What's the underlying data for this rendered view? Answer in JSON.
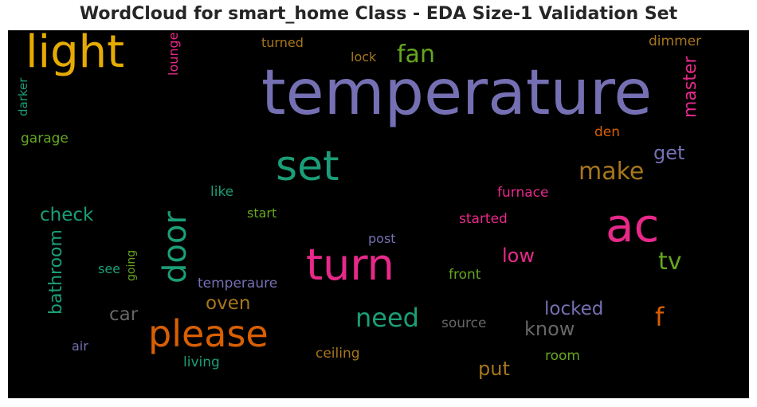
{
  "title": "WordCloud for smart_home Class - EDA Size-1 Validation Set",
  "chart_data": {
    "type": "wordcloud",
    "title": "WordCloud for smart_home Class - EDA Size-1 Validation Set",
    "background": "#000000",
    "words": [
      {
        "text": "temperature",
        "color": "#7570b3",
        "vertical": false
      },
      {
        "text": "light",
        "color": "#e6ab02",
        "vertical": false
      },
      {
        "text": "turn",
        "color": "#e7298a",
        "vertical": false
      },
      {
        "text": "please",
        "color": "#d95f02",
        "vertical": false
      },
      {
        "text": "ac",
        "color": "#e7298a",
        "vertical": false
      },
      {
        "text": "set",
        "color": "#1b9e77",
        "vertical": false
      },
      {
        "text": "door",
        "color": "#1b9e77",
        "vertical": true
      },
      {
        "text": "make",
        "color": "#a6761d",
        "vertical": false
      },
      {
        "text": "need",
        "color": "#1b9e77",
        "vertical": false
      },
      {
        "text": "fan",
        "color": "#66a61e",
        "vertical": false
      },
      {
        "text": "tv",
        "color": "#66a61e",
        "vertical": false
      },
      {
        "text": "master",
        "color": "#e7298a",
        "vertical": true
      },
      {
        "text": "check",
        "color": "#1b9e77",
        "vertical": false
      },
      {
        "text": "bathroom",
        "color": "#1b9e77",
        "vertical": true
      },
      {
        "text": "get",
        "color": "#7570b3",
        "vertical": false
      },
      {
        "text": "locked",
        "color": "#7570b3",
        "vertical": false
      },
      {
        "text": "know",
        "color": "#666666",
        "vertical": false
      },
      {
        "text": "f",
        "color": "#d95f02",
        "vertical": false
      },
      {
        "text": "low",
        "color": "#e7298a",
        "vertical": false
      },
      {
        "text": "put",
        "color": "#a6761d",
        "vertical": false
      },
      {
        "text": "oven",
        "color": "#a6761d",
        "vertical": false
      },
      {
        "text": "car",
        "color": "#666666",
        "vertical": false
      },
      {
        "text": "lounge",
        "color": "#e7298a",
        "vertical": true
      },
      {
        "text": "darker",
        "color": "#1b9e77",
        "vertical": true
      },
      {
        "text": "garage",
        "color": "#66a61e",
        "vertical": false
      },
      {
        "text": "turned",
        "color": "#a6761d",
        "vertical": false
      },
      {
        "text": "lock",
        "color": "#a6761d",
        "vertical": false
      },
      {
        "text": "dimmer",
        "color": "#a6761d",
        "vertical": false
      },
      {
        "text": "den",
        "color": "#d95f02",
        "vertical": false
      },
      {
        "text": "furnace",
        "color": "#e7298a",
        "vertical": false
      },
      {
        "text": "like",
        "color": "#1b9e77",
        "vertical": false
      },
      {
        "text": "start",
        "color": "#66a61e",
        "vertical": false
      },
      {
        "text": "started",
        "color": "#e7298a",
        "vertical": false
      },
      {
        "text": "post",
        "color": "#7570b3",
        "vertical": false
      },
      {
        "text": "see",
        "color": "#1b9e77",
        "vertical": false
      },
      {
        "text": "going",
        "color": "#66a61e",
        "vertical": true
      },
      {
        "text": "temperaure",
        "color": "#7570b3",
        "vertical": false
      },
      {
        "text": "front",
        "color": "#66a61e",
        "vertical": false
      },
      {
        "text": "source",
        "color": "#666666",
        "vertical": false
      },
      {
        "text": "air",
        "color": "#7570b3",
        "vertical": false
      },
      {
        "text": "ceiling",
        "color": "#a6761d",
        "vertical": false
      },
      {
        "text": "living",
        "color": "#1b9e77",
        "vertical": false
      },
      {
        "text": "room",
        "color": "#66a61e",
        "vertical": false
      }
    ]
  }
}
